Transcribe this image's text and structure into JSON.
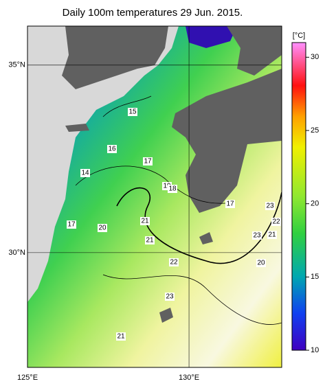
{
  "title": "Daily 100m temperatures 29 Jun. 2015.",
  "map": {
    "lonlim": [
      125,
      132.87
    ],
    "latlim": [
      26.94,
      36.04
    ],
    "lon_ticks": [
      {
        "value": 125,
        "label": "125°E"
      },
      {
        "value": 130,
        "label": "130°E"
      }
    ],
    "lat_ticks": [
      {
        "value": 35,
        "label": "35°N"
      },
      {
        "value": 30,
        "label": "30°N"
      }
    ],
    "contour_labels": [
      15,
      16,
      17,
      14,
      19,
      18,
      17,
      23,
      22,
      21,
      20,
      17,
      23,
      21,
      21,
      22,
      20,
      23,
      21
    ]
  },
  "colorbar": {
    "unit": "[°C]",
    "lim": [
      10,
      31
    ],
    "ticks": [
      10,
      15,
      20,
      25,
      30
    ]
  }
}
